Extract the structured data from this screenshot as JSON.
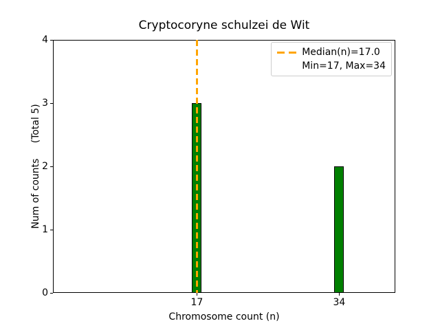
{
  "figure": {
    "background": "#ffffff"
  },
  "chart_data": {
    "type": "bar",
    "title": "Cryptocoryne schulzei de Wit",
    "xlabel": "Chromosome count (n)",
    "ylabel": "Num of counts     (Total 5)",
    "total_label": "(Total 5)",
    "x": [
      17,
      34
    ],
    "values": [
      3,
      2
    ],
    "bar_width_units": 1.15,
    "bar_color": "#008000",
    "bar_edge_color": "#000000",
    "median_line": {
      "x": 17,
      "value_label": "Median(n)=17.0",
      "color": "#FFA500",
      "style": "dashed"
    },
    "legend": {
      "position": "upper right",
      "entries": [
        {
          "label": "Median(n)=17.0",
          "marker": "orange-dashed-line"
        },
        {
          "label": "Min=17, Max=34",
          "marker": "none"
        }
      ]
    },
    "xlim": [
      -0.2,
      40.7
    ],
    "ylim": [
      0,
      4
    ],
    "xticks": [
      17,
      34
    ],
    "xtick_labels": [
      "17",
      "34"
    ],
    "yticks": [
      0,
      1,
      2,
      3,
      4
    ],
    "ytick_labels": [
      "0",
      "1",
      "2",
      "3",
      "4"
    ],
    "grid": false,
    "min": 17,
    "max": 34,
    "median": 17.0,
    "total": 5
  }
}
